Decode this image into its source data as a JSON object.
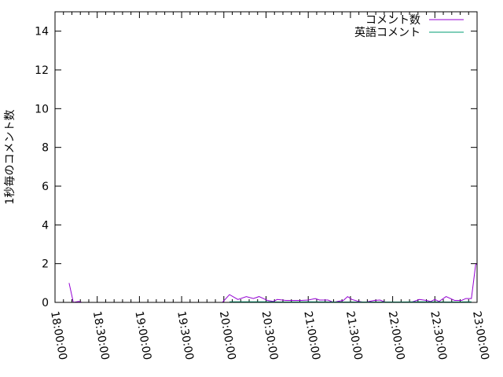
{
  "chart_data": {
    "type": "line",
    "title": "",
    "xlabel": "",
    "ylabel": "1秒毎のコメント数",
    "xlim": [
      "18:00:00",
      "23:00:00"
    ],
    "ylim": [
      0,
      15
    ],
    "x_ticks": [
      "18:00:00",
      "18:30:00",
      "19:00:00",
      "19:30:00",
      "20:00:00",
      "20:30:00",
      "21:00:00",
      "21:30:00",
      "22:00:00",
      "22:30:00",
      "23:00:00"
    ],
    "y_ticks": [
      0,
      2,
      4,
      6,
      8,
      10,
      12,
      14
    ],
    "grid": false,
    "legend": "top-right",
    "series": [
      {
        "name": "コメント数",
        "color": "#9400d3",
        "x": [
          "18:10",
          "18:13",
          "18:17",
          "18:19",
          "19:59",
          "20:04",
          "20:10",
          "20:16",
          "20:21",
          "20:25",
          "20:31",
          "20:35",
          "20:38",
          "20:44",
          "20:55",
          "21:00",
          "21:05",
          "21:08",
          "21:14",
          "21:18",
          "21:21",
          "21:25",
          "21:28",
          "21:31",
          "21:36",
          "21:40",
          "21:47",
          "21:51",
          "21:55",
          "22:13",
          "22:19",
          "22:24",
          "22:27",
          "22:30",
          "22:33",
          "22:38",
          "22:44",
          "22:49",
          "22:52",
          "22:56",
          "22:59",
          "23:00"
        ],
        "y": [
          1.0,
          0,
          0.05,
          0,
          0,
          0.4,
          0.15,
          0.3,
          0.2,
          0.3,
          0.1,
          0.05,
          0.15,
          0.1,
          0.1,
          0.12,
          0.2,
          0.12,
          0.12,
          0,
          0.05,
          0.1,
          0.3,
          0.15,
          0.05,
          0,
          0.1,
          0.12,
          0,
          0,
          0.15,
          0.1,
          0.05,
          0.15,
          0.05,
          0.3,
          0.1,
          0.1,
          0.2,
          0.2,
          1.95,
          2.0
        ]
      },
      {
        "name": "英語コメント",
        "color": "#009e73",
        "x": [
          "20:04",
          "20:15",
          "20:16",
          "20:30",
          "20:40",
          "21:00",
          "21:20",
          "21:40",
          "22:00",
          "22:20",
          "22:40",
          "22:56"
        ],
        "y": [
          0.03,
          0.03,
          0.03,
          0.03,
          0.02,
          0.03,
          0.02,
          0.02,
          0.02,
          0.03,
          0.02,
          0.03
        ]
      }
    ]
  }
}
